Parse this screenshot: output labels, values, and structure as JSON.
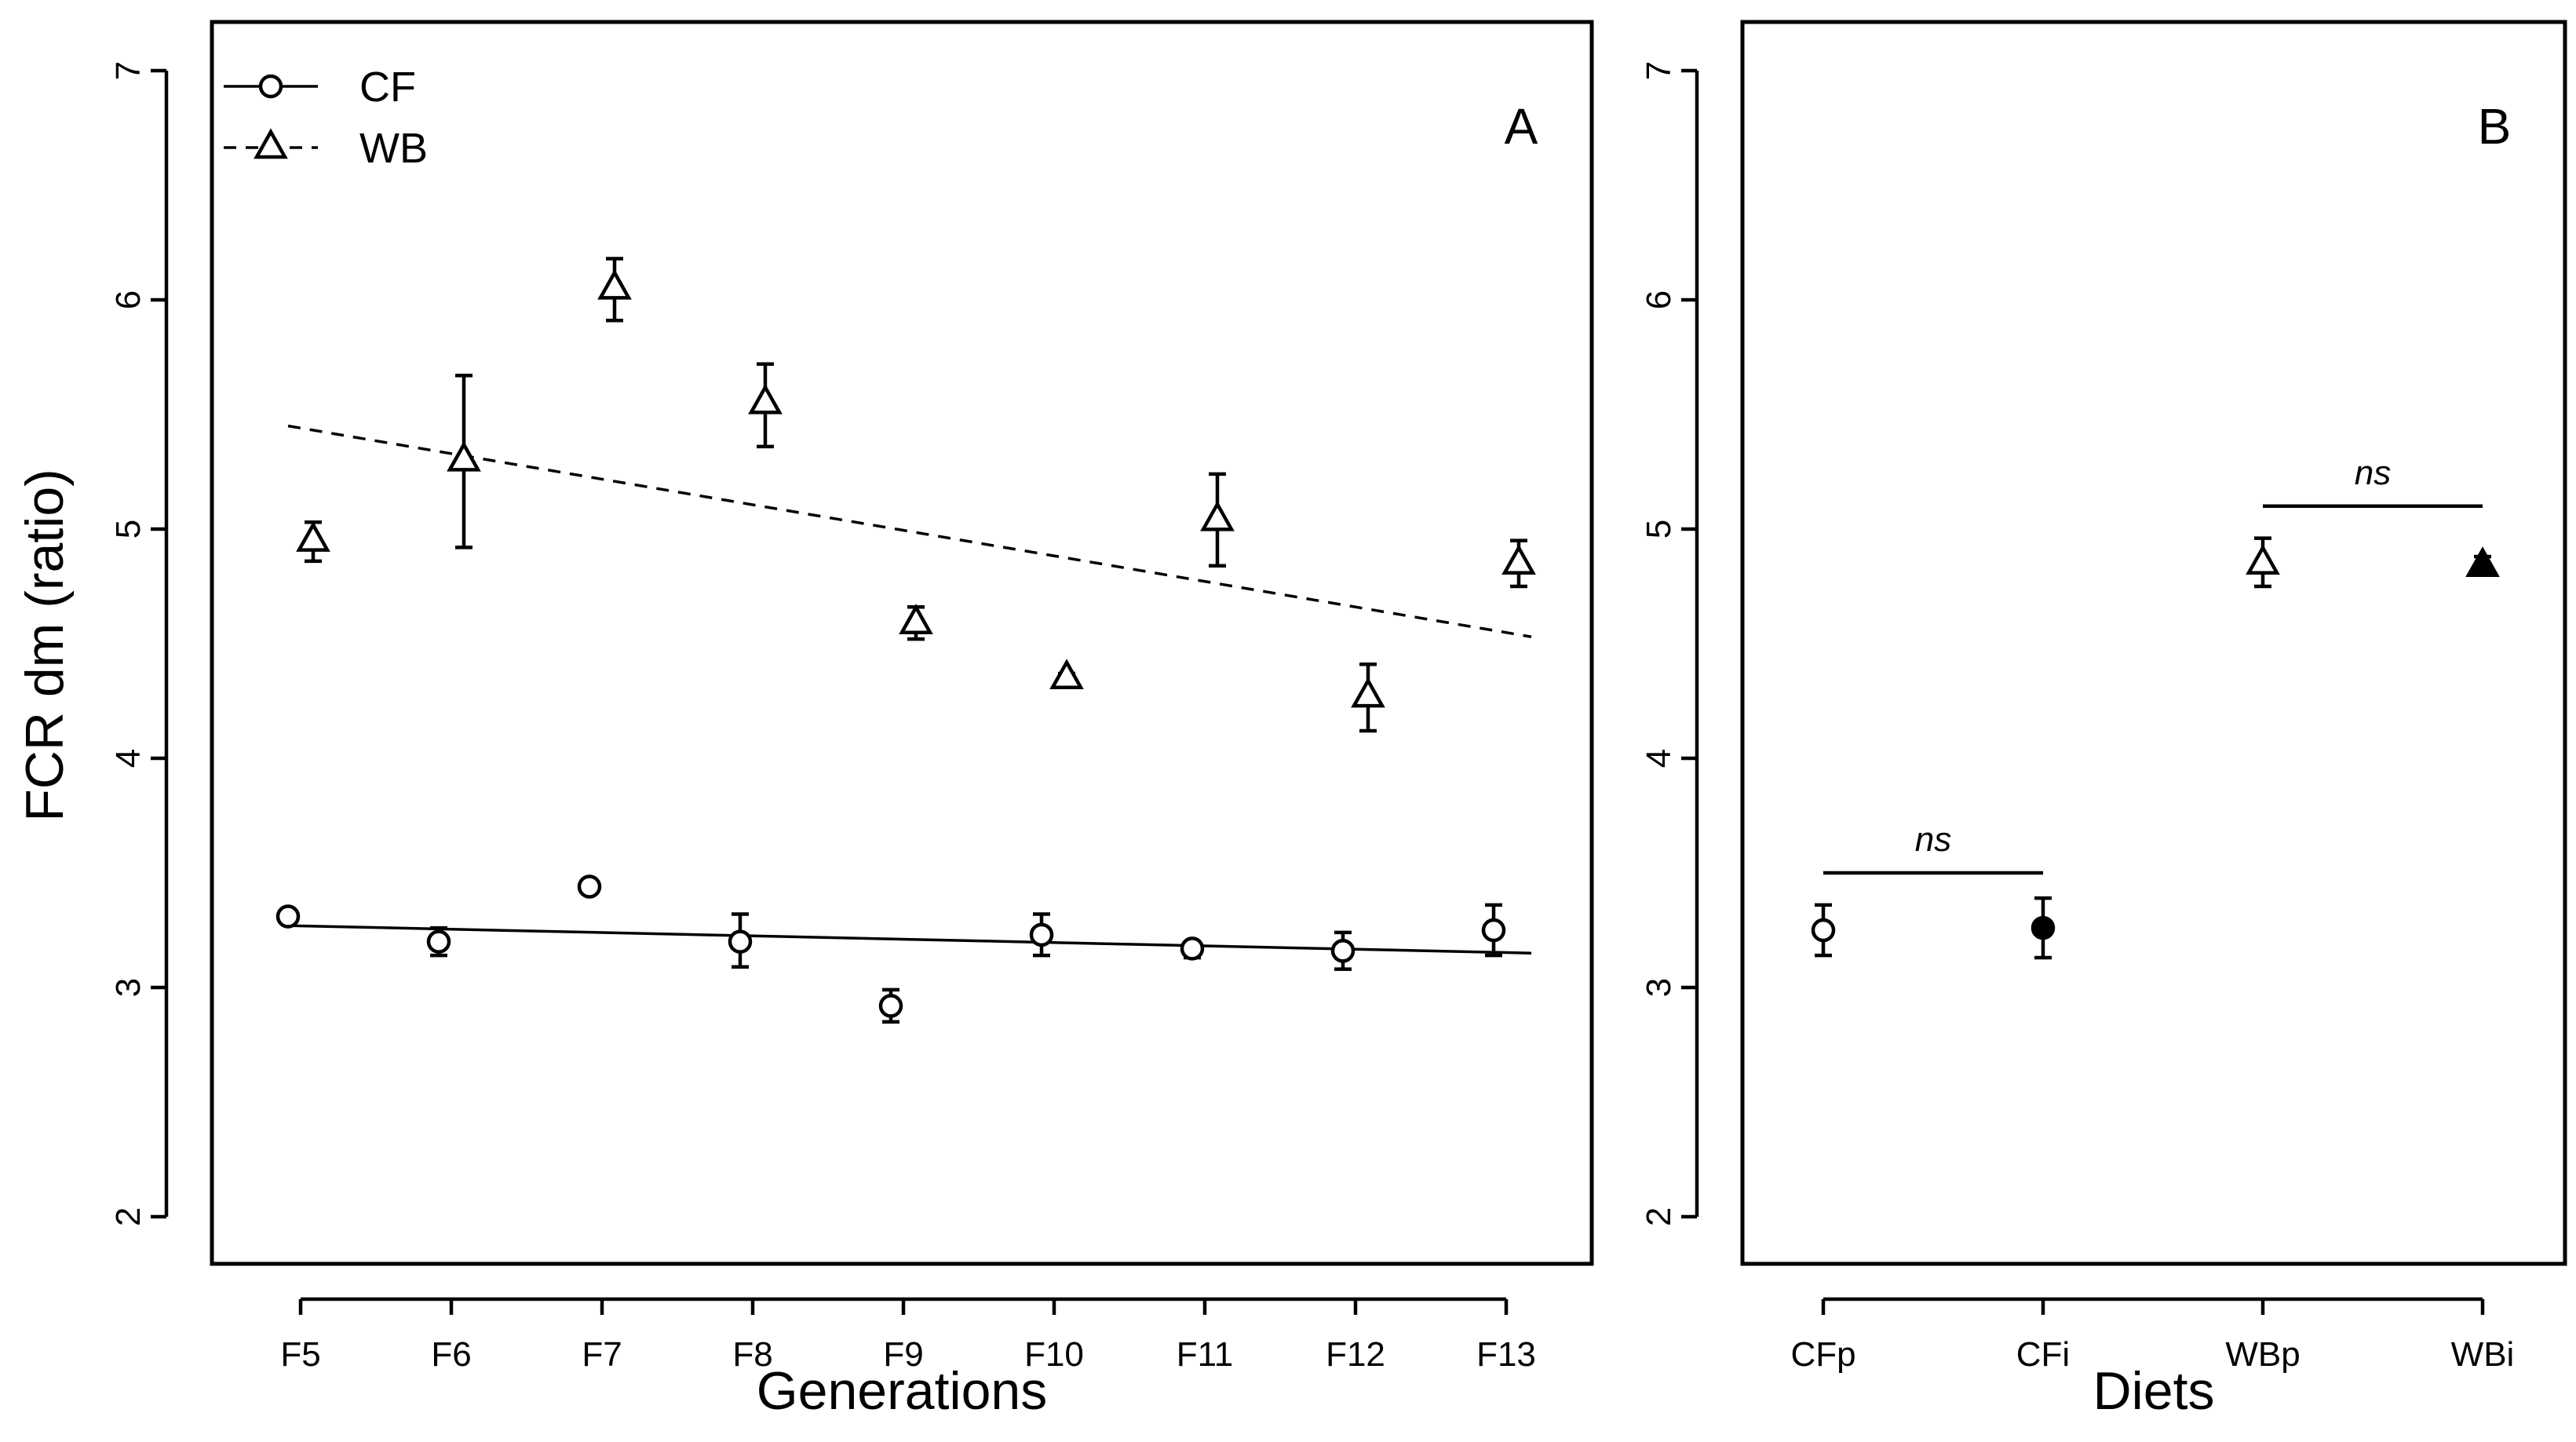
{
  "y_axis_label": "FCR dm (ratio)",
  "chart_data": [
    {
      "panel_label": "A",
      "type": "scatter",
      "xlabel": "Generations",
      "ylabel": "FCR dm (ratio)",
      "categories": [
        "F5",
        "F6",
        "F7",
        "F8",
        "F9",
        "F10",
        "F11",
        "F12",
        "F13"
      ],
      "ylim": [
        2,
        7
      ],
      "yticks": [
        "2",
        "3",
        "4",
        "5",
        "6",
        "7"
      ],
      "legend": {
        "position": "top-left",
        "entries": [
          "CF",
          "WB"
        ]
      },
      "series": [
        {
          "name": "CF",
          "marker": "open-circle",
          "line": "solid",
          "values": [
            3.31,
            3.2,
            3.44,
            3.2,
            2.92,
            3.23,
            3.17,
            3.16,
            3.25
          ],
          "err_low": [
            3.29,
            3.14,
            3.41,
            3.09,
            2.85,
            3.14,
            3.13,
            3.08,
            3.14
          ],
          "err_high": [
            3.33,
            3.26,
            3.47,
            3.32,
            2.99,
            3.32,
            3.2,
            3.24,
            3.36
          ],
          "trend": [
            3.27,
            3.15
          ]
        },
        {
          "name": "WB",
          "marker": "open-triangle",
          "line": "dashed",
          "values": [
            4.95,
            5.3,
            6.05,
            5.55,
            4.59,
            4.35,
            5.04,
            4.27,
            4.85
          ],
          "err_low": [
            4.86,
            4.92,
            5.91,
            5.36,
            4.52,
            4.33,
            4.84,
            4.12,
            4.75
          ],
          "err_high": [
            5.03,
            5.67,
            6.18,
            5.72,
            4.66,
            4.37,
            5.24,
            4.41,
            4.95
          ],
          "trend": [
            5.45,
            4.53
          ]
        }
      ]
    },
    {
      "panel_label": "B",
      "type": "scatter",
      "xlabel": "Diets",
      "ylabel": "",
      "categories": [
        "CFp",
        "CFi",
        "WBp",
        "WBi"
      ],
      "ylim": [
        2,
        7
      ],
      "yticks": [
        "2",
        "3",
        "4",
        "5",
        "6",
        "7"
      ],
      "points": [
        {
          "category": "CFp",
          "marker": "open-circle",
          "value": 3.25,
          "err_low": 3.14,
          "err_high": 3.36
        },
        {
          "category": "CFi",
          "marker": "filled-circle",
          "value": 3.26,
          "err_low": 3.13,
          "err_high": 3.39
        },
        {
          "category": "WBp",
          "marker": "open-triangle",
          "value": 4.85,
          "err_low": 4.75,
          "err_high": 4.96
        },
        {
          "category": "WBi",
          "marker": "filled-triangle",
          "value": 4.84,
          "err_low": 4.8,
          "err_high": 4.88
        }
      ],
      "annotations": [
        {
          "text": "ns",
          "from": "CFp",
          "to": "CFi",
          "y": 3.5
        },
        {
          "text": "ns",
          "from": "WBp",
          "to": "WBi",
          "y": 5.1
        }
      ]
    }
  ]
}
